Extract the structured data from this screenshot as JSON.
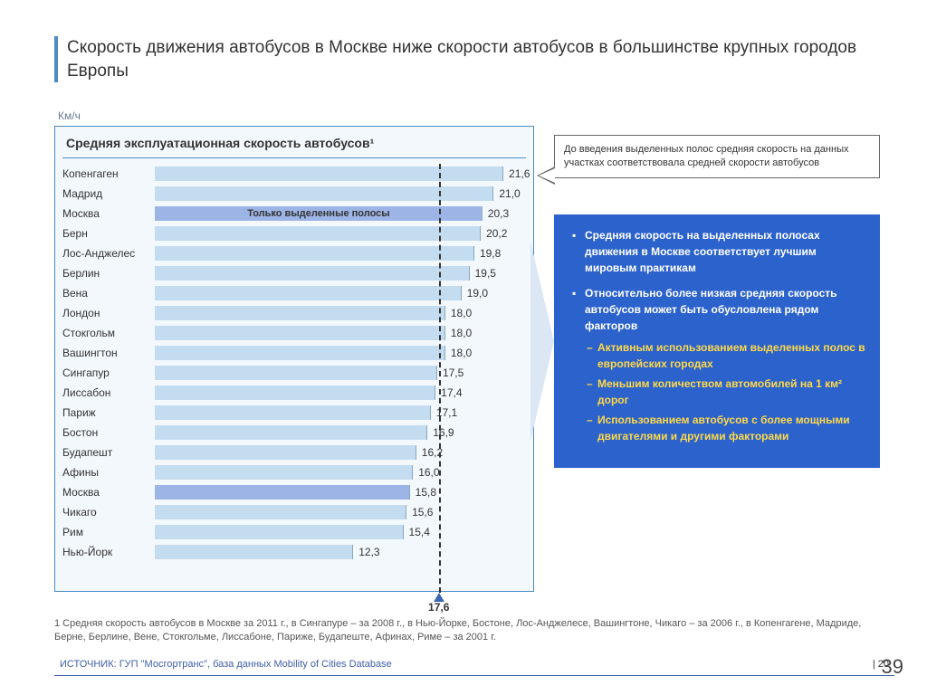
{
  "slide": {
    "title": "Скорость движения автобусов в Москве ниже скорости автобусов в большинстве крупных городов Европы",
    "page_big": "39",
    "page_small": "20"
  },
  "chart": {
    "type": "bar",
    "axis_label": "Км/ч",
    "header": "Средняя эксплуатационная скорость автобусов¹",
    "overlay_text": "Только выделенные полосы",
    "xlim": [
      0,
      23
    ],
    "average": 17.6,
    "background_color": "#f3f8fd",
    "border_color": "#4a8bc5",
    "bar_color": "#c4dcf0",
    "bar_highlight_color": "#9db5e6",
    "marker_color": "#3a67b3",
    "bars": [
      {
        "label": "Копенгаген",
        "value": 21.6,
        "display": "21,6",
        "highlight": false,
        "overlay": false
      },
      {
        "label": "Мадрид",
        "value": 21.0,
        "display": "21,0",
        "highlight": false,
        "overlay": false
      },
      {
        "label": "Москва",
        "value": 20.3,
        "display": "20,3",
        "highlight": true,
        "overlay": true
      },
      {
        "label": "Берн",
        "value": 20.2,
        "display": "20,2",
        "highlight": false,
        "overlay": false
      },
      {
        "label": "Лос-Анджелес",
        "value": 19.8,
        "display": "19,8",
        "highlight": false,
        "overlay": false
      },
      {
        "label": "Берлин",
        "value": 19.5,
        "display": "19,5",
        "highlight": false,
        "overlay": false
      },
      {
        "label": "Вена",
        "value": 19.0,
        "display": "19,0",
        "highlight": false,
        "overlay": false
      },
      {
        "label": "Лондон",
        "value": 18.0,
        "display": "18,0",
        "highlight": false,
        "overlay": false
      },
      {
        "label": "Стокгольм",
        "value": 18.0,
        "display": "18,0",
        "highlight": false,
        "overlay": false
      },
      {
        "label": "Вашингтон",
        "value": 18.0,
        "display": "18,0",
        "highlight": false,
        "overlay": false
      },
      {
        "label": "Сингапур",
        "value": 17.5,
        "display": "17,5",
        "highlight": false,
        "overlay": false
      },
      {
        "label": "Лиссабон",
        "value": 17.4,
        "display": "17,4",
        "highlight": false,
        "overlay": false
      },
      {
        "label": "Париж",
        "value": 17.1,
        "display": "17,1",
        "highlight": false,
        "overlay": false
      },
      {
        "label": "Бостон",
        "value": 16.9,
        "display": "16,9",
        "highlight": false,
        "overlay": false
      },
      {
        "label": "Будапешт",
        "value": 16.2,
        "display": "16,2",
        "highlight": false,
        "overlay": false
      },
      {
        "label": "Афины",
        "value": 16.0,
        "display": "16,0",
        "highlight": false,
        "overlay": false
      },
      {
        "label": "Москва",
        "value": 15.8,
        "display": "15,8",
        "highlight": true,
        "overlay": false
      },
      {
        "label": "Чикаго",
        "value": 15.6,
        "display": "15,6",
        "highlight": false,
        "overlay": false
      },
      {
        "label": "Рим",
        "value": 15.4,
        "display": "15,4",
        "highlight": false,
        "overlay": false
      },
      {
        "label": "Нью-Йорк",
        "value": 12.3,
        "display": "12,3",
        "highlight": false,
        "overlay": false
      }
    ],
    "average_display": "17,6"
  },
  "callout": {
    "text": "До введения выделенных полос средняя скорость на данных участках соответствовала средней скорости автобусов"
  },
  "info_box": {
    "background_color": "#2b62cb",
    "text_color": "#ffffff",
    "sub_highlight_color": "#ffd94a",
    "items": [
      {
        "text": "Средняя скорость на выделенных полосах движения в Москве соответствует лучшим мировым практикам"
      },
      {
        "text": "Относительно более низкая средняя скорость автобусов может быть обусловлена рядом факторов",
        "sub": [
          "Активным использованием выделенных полос в европейских городах",
          "Меньшим количеством автомобилей на 1 км² дорог",
          "Использованием автобусов с более мощными двигателями и другими факторами"
        ]
      }
    ]
  },
  "footnote": "1 Средняя скорость автобусов в Москве за 2011 г., в Сингапуре – за 2008 г., в Нью-Йорке, Бостоне, Лос-Анджелесе, Вашингтоне, Чикаго – за 2006 г., в Копенгагене, Мадриде, Берне, Берлине, Вене, Стокгольме, Лиссабоне, Париже, Будапеште, Афинах, Риме – за 2001 г.",
  "source": {
    "label": "ИСТОЧНИК: ГУП \"Мосгортранс\", база данных Mobility of Cities Database"
  }
}
